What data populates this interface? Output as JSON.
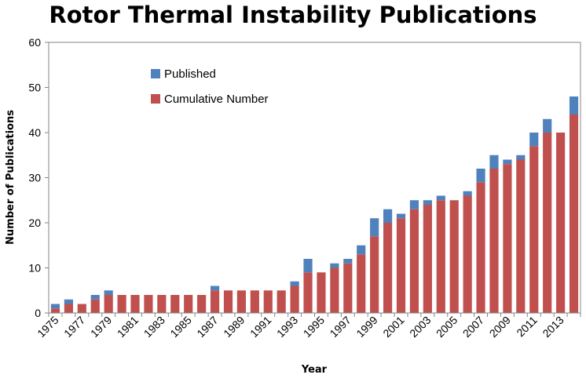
{
  "chart_data": {
    "type": "bar",
    "title": "Rotor Thermal Instability Publications",
    "xlabel": "Year",
    "ylabel": "Number of Publications",
    "ylim": [
      0,
      60
    ],
    "yticks": [
      0,
      10,
      20,
      30,
      40,
      50,
      60
    ],
    "categories": [
      "1975",
      "1976",
      "1977",
      "1978",
      "1979",
      "1980",
      "1981",
      "1982",
      "1983",
      "1984",
      "1985",
      "1986",
      "1987",
      "1988",
      "1989",
      "1990",
      "1991",
      "1992",
      "1993",
      "1994",
      "1995",
      "1996",
      "1997",
      "1998",
      "1999",
      "2000",
      "2001",
      "2002",
      "2003",
      "2004",
      "2005",
      "2006",
      "2007",
      "2008",
      "2009",
      "2010",
      "2011",
      "2012",
      "2013",
      "2014"
    ],
    "x_tick_labels": [
      "1975",
      "1977",
      "1979",
      "1981",
      "1983",
      "1985",
      "1987",
      "1989",
      "1991",
      "1993",
      "1995",
      "1997",
      "1999",
      "2001",
      "2003",
      "2005",
      "2007",
      "2009",
      "2011",
      "2013"
    ],
    "stacked": true,
    "series": [
      {
        "name": "Cumulative Number",
        "color": "#c0504d",
        "values": [
          1,
          2,
          2,
          3,
          4,
          4,
          4,
          4,
          4,
          4,
          4,
          4,
          5,
          5,
          5,
          5,
          5,
          5,
          6,
          9,
          9,
          10,
          11,
          13,
          17,
          20,
          21,
          23,
          24,
          25,
          25,
          26,
          29,
          32,
          33,
          34,
          37,
          40,
          40,
          44
        ]
      },
      {
        "name": "Published",
        "color": "#4f81bd",
        "values": [
          1,
          1,
          0,
          1,
          1,
          0,
          0,
          0,
          0,
          0,
          0,
          0,
          1,
          0,
          0,
          0,
          0,
          0,
          1,
          3,
          0,
          1,
          1,
          2,
          4,
          3,
          1,
          2,
          1,
          1,
          0,
          1,
          3,
          3,
          1,
          1,
          3,
          3,
          0,
          4
        ]
      }
    ],
    "legend": {
      "position": "top-left",
      "order": [
        "Published",
        "Cumulative Number"
      ]
    },
    "grid": false
  }
}
